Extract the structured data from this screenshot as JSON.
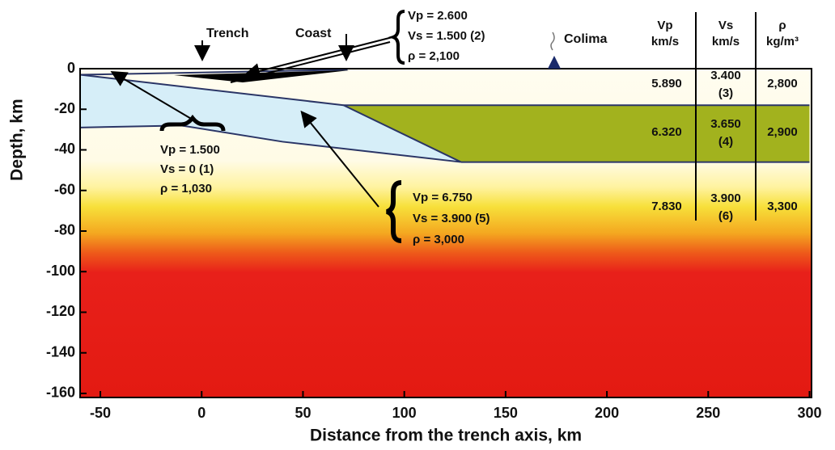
{
  "chart_data": {
    "type": "cross-section",
    "x_label": "Distance from the trench axis, km",
    "y_label": "Depth, km",
    "xlim": [
      -60,
      301
    ],
    "ylim": [
      -162,
      0
    ],
    "xticks": [
      -50,
      0,
      50,
      100,
      150,
      200,
      250,
      300
    ],
    "yticks": [
      0,
      -20,
      -40,
      -60,
      -80,
      -100,
      -120,
      -140,
      -160
    ],
    "boundaries": [
      {
        "x": [
          -60,
          70,
          128
        ],
        "y": [
          -3,
          -18,
          -46
        ]
      },
      {
        "x": [
          -60,
          -10,
          40,
          128
        ],
        "y": [
          -29,
          -28,
          -36,
          -46
        ]
      },
      {
        "x": [
          70,
          300
        ],
        "y": [
          -18,
          -18
        ]
      },
      {
        "x": [
          128,
          300
        ],
        "y": [
          -46,
          -46
        ]
      },
      {
        "x": [
          -60,
          72
        ],
        "y": [
          -3,
          -0.5
        ]
      }
    ],
    "places": [
      "Trench",
      "Coast",
      "Colima"
    ],
    "table": {
      "header": [
        [
          "Vp",
          "km/s"
        ],
        [
          "Vs",
          "km/s"
        ],
        [
          "ρ",
          "kg/m³"
        ]
      ],
      "rows": [
        [
          "5.890",
          [
            "3.400",
            "(3)"
          ],
          "2,800"
        ],
        [
          "6.320",
          [
            "3.650",
            "(4)"
          ],
          "2,900"
        ],
        [
          "7.830",
          [
            "3.900",
            "(6)"
          ],
          "3,300"
        ]
      ]
    },
    "layer_labels": [
      [
        "Vp = 2.600",
        "Vs = 1.500  (2)",
        "ρ = 2,100"
      ],
      [
        "Vp = 1.500",
        "Vs = 0  (1)",
        "ρ = 1,030"
      ],
      [
        "Vp = 6.750",
        "Vs = 3.900  (5)",
        "ρ = 3,000"
      ]
    ]
  }
}
